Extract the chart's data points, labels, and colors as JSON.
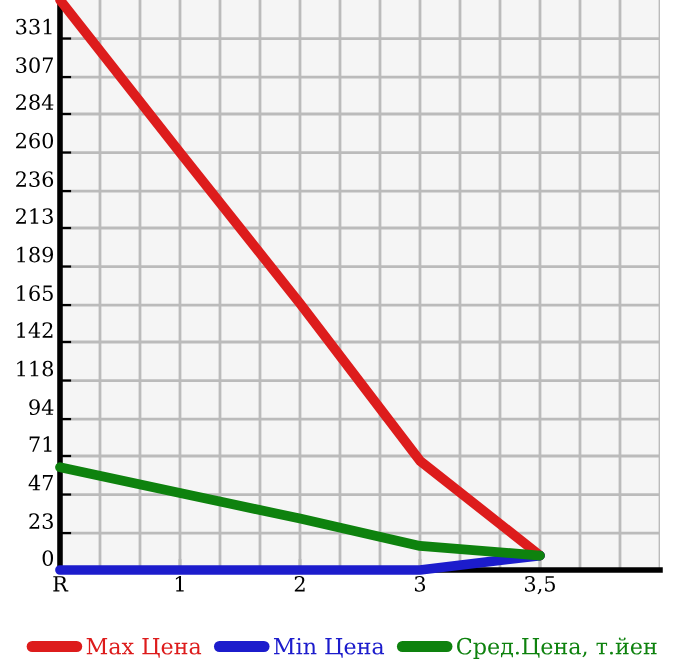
{
  "chart_data": {
    "type": "line",
    "categories": [
      "R",
      "1",
      "2",
      "3",
      "3,5"
    ],
    "series": [
      {
        "name": "Max Цена",
        "color": "#dd1c1c",
        "values": [
          355,
          260,
          166,
          68,
          9
        ]
      },
      {
        "name": "Min Цена",
        "color": "#1c1ccc",
        "values": [
          0,
          0,
          0,
          0,
          9
        ]
      },
      {
        "name": "Сред.Цена, т.йен",
        "color": "#0e820e",
        "values": [
          64,
          48,
          32,
          15,
          9
        ]
      }
    ],
    "ylim": [
      0,
      355
    ],
    "yticks": [
      0,
      23,
      47,
      71,
      94,
      118,
      142,
      165,
      189,
      213,
      236,
      260,
      284,
      307,
      331
    ],
    "grid": true,
    "legend": "bottom",
    "marker": "none",
    "line_style": "solid"
  }
}
